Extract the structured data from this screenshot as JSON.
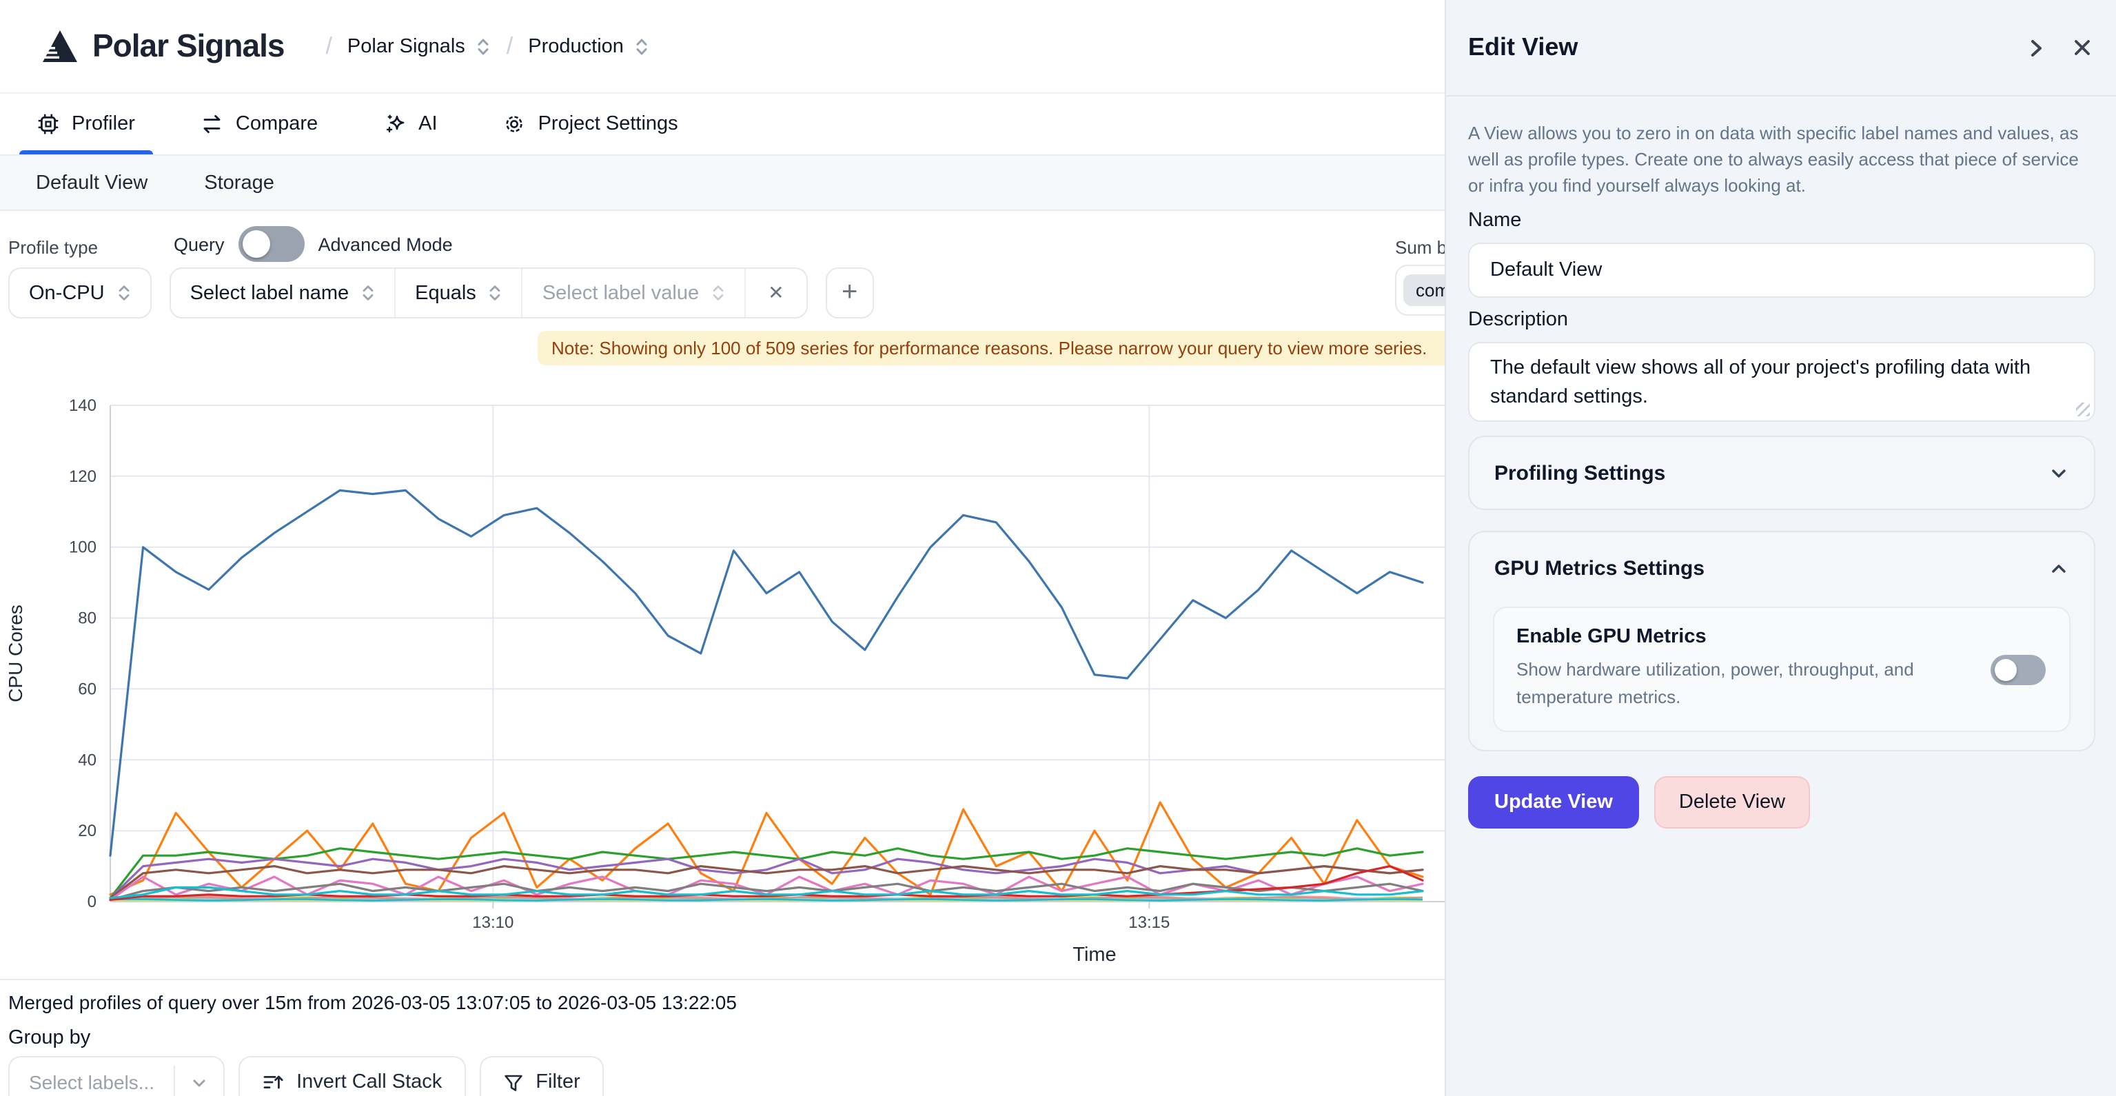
{
  "header": {
    "logo_text": "Polar Signals",
    "breadcrumb": {
      "separator": "/",
      "items": [
        {
          "label": "Polar Signals"
        },
        {
          "label": "Production"
        }
      ]
    }
  },
  "tabs": {
    "items": [
      {
        "label": "Profiler",
        "icon": "cpu-chip-icon",
        "active": true
      },
      {
        "label": "Compare",
        "icon": "compare-arrows-icon",
        "active": false
      },
      {
        "label": "AI",
        "icon": "sparkles-icon",
        "active": false
      },
      {
        "label": "Project Settings",
        "icon": "gear-icon",
        "active": false
      }
    ]
  },
  "subtabs": {
    "items": [
      {
        "label": "Default View",
        "active": true
      },
      {
        "label": "Storage",
        "active": false
      }
    ]
  },
  "query": {
    "profile_type_label": "Profile type",
    "profile_type_value": "On-CPU",
    "query_toggle_label": "Query",
    "query_toggle_state": "off",
    "advanced_mode_label": "Advanced Mode",
    "label_name_placeholder": "Select label name",
    "operator_value": "Equals",
    "label_value_placeholder": "Select label value",
    "clear_icon": "✕",
    "add_icon": "+",
    "sum_by_label": "Sum by",
    "sum_by_chip": "comm"
  },
  "note": {
    "text": "Note: Showing only 100 of 509 series for performance reasons. Please narrow your query to view more series."
  },
  "chart_data": {
    "type": "line",
    "xlabel": "Time",
    "ylabel": "CPU Cores",
    "ylim": [
      0,
      140
    ],
    "yticks": [
      0,
      20,
      40,
      60,
      80,
      100,
      120,
      140
    ],
    "x_start": "13:07:05",
    "x_end": "13:22:05",
    "point_interval_seconds": 15,
    "total_seconds": 900,
    "xticks": [
      {
        "label": "13:10",
        "seconds_from_start": 175
      },
      {
        "label": "13:15",
        "seconds_from_start": 475
      }
    ],
    "grid": true,
    "legend": "none",
    "series": [
      {
        "color": "#ff7f0e",
        "values": [
          2,
          6,
          25,
          14,
          4,
          12,
          20,
          9,
          22,
          5,
          3,
          18,
          25,
          4,
          12,
          6,
          15,
          22,
          8,
          3,
          25,
          12,
          5,
          18,
          8,
          2,
          26,
          10,
          14,
          3,
          20,
          6,
          28,
          12,
          4,
          8,
          18,
          5,
          23,
          10,
          7
        ]
      },
      {
        "color": "#2ca02c",
        "values": [
          1,
          13,
          13,
          14,
          13,
          12,
          13,
          15,
          14,
          13,
          12,
          13,
          14,
          13,
          12,
          14,
          13,
          12,
          13,
          14,
          13,
          12,
          14,
          13,
          15,
          13,
          12,
          13,
          14,
          12,
          13,
          15,
          14,
          13,
          12,
          13,
          14,
          13,
          15,
          13,
          14
        ]
      },
      {
        "color": "#9467bd",
        "values": [
          1,
          10,
          11,
          12,
          11,
          12,
          11,
          10,
          12,
          11,
          9,
          10,
          12,
          11,
          9,
          10,
          11,
          12,
          9,
          8,
          9,
          12,
          8,
          9,
          12,
          11,
          9,
          8,
          9,
          10,
          12,
          11,
          8,
          9,
          10,
          8,
          9,
          10,
          9,
          8,
          9
        ]
      },
      {
        "color": "#8c564b",
        "values": [
          1,
          8,
          9,
          8,
          9,
          10,
          8,
          9,
          8,
          9,
          9,
          8,
          10,
          9,
          8,
          9,
          9,
          8,
          10,
          9,
          8,
          9,
          9,
          10,
          8,
          9,
          10,
          9,
          8,
          9,
          9,
          8,
          10,
          9,
          9,
          8,
          9,
          10,
          9,
          8,
          9
        ]
      },
      {
        "color": "#e377c2",
        "values": [
          0.5,
          7,
          2,
          5,
          3,
          7,
          2,
          6,
          5,
          2,
          7,
          3,
          6,
          2,
          5,
          7,
          3,
          2,
          6,
          5,
          2,
          7,
          3,
          5,
          2,
          6,
          5,
          2,
          7,
          3,
          5,
          7,
          2,
          5,
          3,
          6,
          2,
          5,
          7,
          3,
          5
        ]
      },
      {
        "color": "#7f7f7f",
        "values": [
          0.5,
          3,
          4,
          3,
          4,
          3,
          4,
          5,
          3,
          4,
          3,
          4,
          5,
          3,
          4,
          3,
          4,
          3,
          5,
          4,
          3,
          4,
          3,
          4,
          5,
          3,
          4,
          3,
          4,
          5,
          3,
          4,
          3,
          5,
          4,
          3,
          4,
          3,
          4,
          5,
          3
        ]
      },
      {
        "color": "#d62728",
        "values": [
          0.5,
          1.5,
          1.5,
          2,
          1.5,
          1.5,
          2,
          1.5,
          1.5,
          2,
          1.5,
          1.5,
          2,
          1.5,
          1.5,
          2,
          1.5,
          1.5,
          2,
          1.5,
          1.5,
          2,
          1.5,
          1.5,
          2,
          1.5,
          1.5,
          2,
          1.5,
          1.5,
          2,
          1.5,
          2,
          2.5,
          3,
          3.5,
          4,
          5,
          8,
          10,
          6
        ]
      },
      {
        "color": "#17becf",
        "values": [
          1,
          2,
          4,
          4,
          3,
          2,
          2,
          3,
          2,
          2,
          3,
          2,
          2,
          3,
          2,
          2,
          3,
          2,
          2,
          3,
          2,
          2,
          3,
          2,
          2,
          3,
          2,
          2,
          3,
          2,
          2,
          3,
          2,
          2,
          3,
          2,
          2,
          3,
          2,
          2,
          3
        ]
      },
      {
        "color": "#3d76ae",
        "values": [
          13,
          100,
          93,
          88,
          97,
          104,
          110,
          116,
          115,
          116,
          108,
          103,
          109,
          111,
          104,
          96,
          87,
          75,
          70,
          99,
          87,
          93,
          79,
          71,
          86,
          100,
          109,
          107,
          96,
          83,
          64,
          63,
          74,
          85,
          80,
          88,
          99,
          93,
          87,
          93,
          90
        ]
      }
    ],
    "flat_series": [
      {
        "color": "#bcbd22",
        "base": 1.2
      },
      {
        "color": "#aec7e8",
        "base": 0.8
      },
      {
        "color": "#ff9896",
        "base": 1.5
      },
      {
        "color": "#98df8a",
        "base": 0.6
      },
      {
        "color": "#c5b0d5",
        "base": 1.0
      },
      {
        "color": "#f7b6d2",
        "base": 0.5
      },
      {
        "color": "#9edae5",
        "base": 0.9
      },
      {
        "color": "#dbdb8d",
        "base": 0.4
      },
      {
        "color": "#c49c94",
        "base": 1.3
      },
      {
        "color": "#17becf",
        "base": 0.7
      }
    ]
  },
  "summary": {
    "merged_text": "Merged profiles of query over 15m from 2026-03-05 13:07:05 to 2026-03-05 13:22:05"
  },
  "group_by": {
    "label": "Group by",
    "select_placeholder": "Select labels...",
    "invert_label": "Invert Call Stack",
    "filter_label": "Filter"
  },
  "panel": {
    "title": "Edit View",
    "intro": "A View allows you to zero in on data with specific label names and values, as well as profile types. Create one to always easily access that piece of service or infra you find yourself always looking at.",
    "name_label": "Name",
    "name_value": "Default View",
    "description_label": "Description",
    "description_value": "The default view shows all of your project's profiling data with standard settings.",
    "profiling_settings_label": "Profiling Settings",
    "gpu_settings_label": "GPU Metrics Settings",
    "gpu_enable_title": "Enable GPU Metrics",
    "gpu_enable_description": "Show hardware utilization, power, throughput, and temperature metrics.",
    "gpu_toggle_state": "off",
    "update_button": "Update View",
    "delete_button": "Delete View"
  },
  "colors": {
    "accent_blue": "#2563eb",
    "primary_indigo": "#4f46e5",
    "note_bg": "#fcf4d1",
    "note_text": "#92400e",
    "panel_bg": "#f1f4f8",
    "delete_bg": "#fadcdc"
  }
}
